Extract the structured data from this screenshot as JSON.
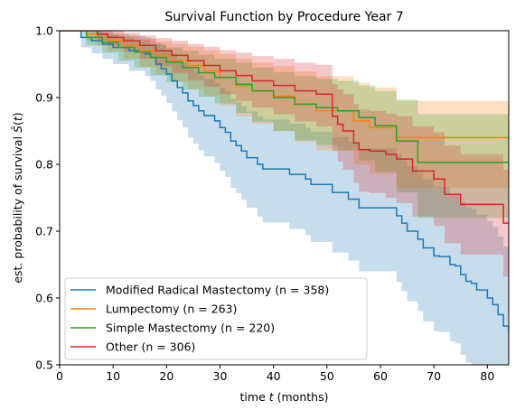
{
  "chart_data": {
    "type": "line",
    "title": "Survival Function by Procedure Year 7",
    "xlabel": "time t (months)",
    "xlabel_parts": [
      "time ",
      "t",
      " (months)"
    ],
    "ylabel": "est. probability of survival Ŝ(t)",
    "ylabel_parts": [
      "est. probability of survival ",
      "Ŝ",
      "(",
      "t",
      ")"
    ],
    "xlim": [
      0,
      84
    ],
    "ylim": [
      0.5,
      1.0
    ],
    "xticks": [
      0,
      10,
      20,
      30,
      40,
      50,
      60,
      70,
      80
    ],
    "yticks": [
      0.5,
      0.6,
      0.7,
      0.8,
      0.9,
      1.0
    ],
    "xtick_labels": [
      "0",
      "10",
      "20",
      "30",
      "40",
      "50",
      "60",
      "70",
      "80"
    ],
    "ytick_labels": [
      "0.5",
      "0.6",
      "0.7",
      "0.8",
      "0.9",
      "1.0"
    ],
    "grid": false,
    "legend_position": "lower-left",
    "series": [
      {
        "name": "Modified Radical Mastectomy (n = 358)",
        "color": "#1f77b4",
        "x": [
          0,
          4,
          6,
          8,
          10,
          13,
          16,
          17,
          18,
          19,
          20,
          21,
          22,
          23,
          24,
          25,
          26,
          27,
          29,
          30,
          31,
          32,
          33,
          34,
          35,
          37,
          38,
          40,
          43,
          46,
          47,
          50,
          51,
          54,
          56,
          61,
          63,
          64,
          65,
          67,
          68,
          70,
          71,
          73,
          74,
          75,
          76,
          77,
          78,
          80,
          81,
          82,
          83,
          84
        ],
        "y": [
          1.0,
          0.99,
          0.985,
          0.98,
          0.975,
          0.97,
          0.965,
          0.96,
          0.95,
          0.943,
          0.935,
          0.925,
          0.915,
          0.907,
          0.895,
          0.888,
          0.88,
          0.873,
          0.865,
          0.855,
          0.848,
          0.835,
          0.828,
          0.82,
          0.81,
          0.8,
          0.793,
          0.793,
          0.785,
          0.778,
          0.77,
          0.77,
          0.758,
          0.748,
          0.735,
          0.735,
          0.723,
          0.712,
          0.7,
          0.688,
          0.675,
          0.663,
          0.662,
          0.65,
          0.648,
          0.635,
          0.625,
          0.622,
          0.612,
          0.6,
          0.59,
          0.575,
          0.558,
          0.545
        ],
        "ci_lower": [
          1.0,
          0.975,
          0.966,
          0.958,
          0.95,
          0.94,
          0.932,
          0.925,
          0.912,
          0.903,
          0.892,
          0.879,
          0.866,
          0.855,
          0.84,
          0.831,
          0.821,
          0.812,
          0.802,
          0.79,
          0.781,
          0.765,
          0.757,
          0.747,
          0.735,
          0.722,
          0.713,
          0.713,
          0.703,
          0.694,
          0.684,
          0.684,
          0.668,
          0.656,
          0.64,
          0.64,
          0.624,
          0.61,
          0.595,
          0.58,
          0.565,
          0.55,
          0.549,
          0.535,
          0.532,
          0.515,
          0.503,
          0.5,
          0.5,
          0.5,
          0.5,
          0.5,
          0.5,
          0.5
        ],
        "ci_upper": [
          1.0,
          1.0,
          1.0,
          1.0,
          0.995,
          0.992,
          0.99,
          0.988,
          0.982,
          0.978,
          0.972,
          0.966,
          0.958,
          0.952,
          0.944,
          0.939,
          0.933,
          0.928,
          0.922,
          0.914,
          0.909,
          0.898,
          0.893,
          0.887,
          0.879,
          0.872,
          0.867,
          0.867,
          0.861,
          0.855,
          0.849,
          0.849,
          0.841,
          0.834,
          0.824,
          0.824,
          0.815,
          0.806,
          0.797,
          0.787,
          0.777,
          0.767,
          0.766,
          0.756,
          0.754,
          0.744,
          0.736,
          0.733,
          0.725,
          0.715,
          0.706,
          0.692,
          0.677,
          0.665
        ]
      },
      {
        "name": "Lumpectomy (n = 263)",
        "color": "#ff7f0e",
        "x": [
          0,
          5,
          7,
          9,
          12,
          15,
          18,
          21,
          24,
          27,
          30,
          33,
          36,
          40,
          44,
          48,
          52,
          55,
          58,
          63,
          66,
          70,
          84
        ],
        "y": [
          1.0,
          0.995,
          0.99,
          0.985,
          0.978,
          0.97,
          0.963,
          0.955,
          0.948,
          0.94,
          0.93,
          0.918,
          0.91,
          0.902,
          0.89,
          0.88,
          0.88,
          0.865,
          0.855,
          0.84,
          0.84,
          0.84,
          0.84
        ],
        "ci_lower": [
          1.0,
          0.985,
          0.977,
          0.969,
          0.958,
          0.946,
          0.935,
          0.924,
          0.913,
          0.902,
          0.888,
          0.872,
          0.861,
          0.85,
          0.834,
          0.821,
          0.821,
          0.8,
          0.786,
          0.765,
          0.765,
          0.765,
          0.765
        ],
        "ci_upper": [
          1.0,
          1.0,
          1.0,
          0.997,
          0.993,
          0.988,
          0.984,
          0.98,
          0.976,
          0.971,
          0.965,
          0.958,
          0.952,
          0.947,
          0.939,
          0.932,
          0.932,
          0.922,
          0.915,
          0.895,
          0.895,
          0.895,
          0.895
        ]
      },
      {
        "name": "Simple Mastectomy (n = 220)",
        "color": "#2ca02c",
        "x": [
          0,
          5,
          8,
          11,
          14,
          17,
          20,
          23,
          26,
          29,
          33,
          36,
          40,
          44,
          48,
          52,
          56,
          59,
          63,
          67,
          84
        ],
        "y": [
          1.0,
          0.99,
          0.983,
          0.975,
          0.968,
          0.96,
          0.953,
          0.945,
          0.937,
          0.93,
          0.92,
          0.91,
          0.9,
          0.89,
          0.885,
          0.88,
          0.87,
          0.858,
          0.835,
          0.803,
          0.803
        ],
        "ci_lower": [
          1.0,
          0.978,
          0.967,
          0.955,
          0.945,
          0.933,
          0.923,
          0.912,
          0.901,
          0.891,
          0.877,
          0.864,
          0.85,
          0.836,
          0.829,
          0.821,
          0.806,
          0.789,
          0.758,
          0.72,
          0.72
        ],
        "ci_upper": [
          1.0,
          1.0,
          0.995,
          0.99,
          0.986,
          0.98,
          0.975,
          0.97,
          0.964,
          0.958,
          0.952,
          0.945,
          0.938,
          0.932,
          0.928,
          0.925,
          0.918,
          0.91,
          0.897,
          0.875,
          0.875
        ]
      },
      {
        "name": "Other (n = 306)",
        "color": "#d62728",
        "x": [
          0,
          7,
          9,
          12,
          15,
          18,
          21,
          24,
          27,
          30,
          33,
          36,
          40,
          44,
          48,
          51,
          52,
          53,
          55,
          56,
          58,
          61,
          63,
          66,
          70,
          72,
          75,
          78,
          80,
          82,
          83,
          84
        ],
        "y": [
          1.0,
          0.995,
          0.99,
          0.985,
          0.978,
          0.97,
          0.963,
          0.955,
          0.948,
          0.94,
          0.933,
          0.925,
          0.918,
          0.91,
          0.905,
          0.872,
          0.86,
          0.85,
          0.832,
          0.822,
          0.82,
          0.815,
          0.808,
          0.79,
          0.778,
          0.755,
          0.74,
          0.74,
          0.74,
          0.74,
          0.712,
          0.712
        ],
        "ci_lower": [
          1.0,
          0.985,
          0.977,
          0.969,
          0.958,
          0.947,
          0.937,
          0.926,
          0.916,
          0.905,
          0.895,
          0.885,
          0.875,
          0.864,
          0.857,
          0.82,
          0.804,
          0.792,
          0.772,
          0.759,
          0.757,
          0.75,
          0.742,
          0.722,
          0.708,
          0.682,
          0.665,
          0.665,
          0.665,
          0.665,
          0.632,
          0.632
        ],
        "ci_upper": [
          1.0,
          1.0,
          1.0,
          0.997,
          0.993,
          0.989,
          0.985,
          0.98,
          0.976,
          0.971,
          0.967,
          0.962,
          0.958,
          0.952,
          0.949,
          0.92,
          0.912,
          0.905,
          0.89,
          0.882,
          0.88,
          0.876,
          0.872,
          0.857,
          0.848,
          0.828,
          0.815,
          0.815,
          0.815,
          0.815,
          0.792,
          0.792
        ]
      }
    ]
  }
}
